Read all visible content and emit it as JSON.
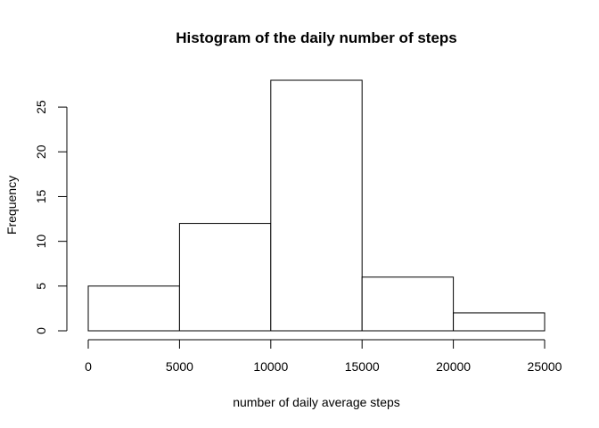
{
  "chart_data": {
    "type": "bar",
    "title": "Histogram of the daily number of steps",
    "xlabel": "number of daily average steps",
    "ylabel": "Frequency",
    "bins": [
      {
        "from": 0,
        "to": 5000,
        "value": 5
      },
      {
        "from": 5000,
        "to": 10000,
        "value": 12
      },
      {
        "from": 10000,
        "to": 15000,
        "value": 28
      },
      {
        "from": 15000,
        "to": 20000,
        "value": 6
      },
      {
        "from": 20000,
        "to": 25000,
        "value": 2
      }
    ],
    "xlim": [
      0,
      25000
    ],
    "ylim": [
      0,
      28
    ],
    "x_ticks": [
      0,
      5000,
      10000,
      15000,
      20000,
      25000
    ],
    "x_tick_labels": [
      "0",
      "5000",
      "10000",
      "15000",
      "20000",
      "25000"
    ],
    "y_ticks": [
      0,
      5,
      10,
      15,
      20,
      25
    ],
    "y_tick_labels": [
      "0",
      "5",
      "10",
      "15",
      "20",
      "25"
    ],
    "grid": false,
    "legend": "none"
  }
}
